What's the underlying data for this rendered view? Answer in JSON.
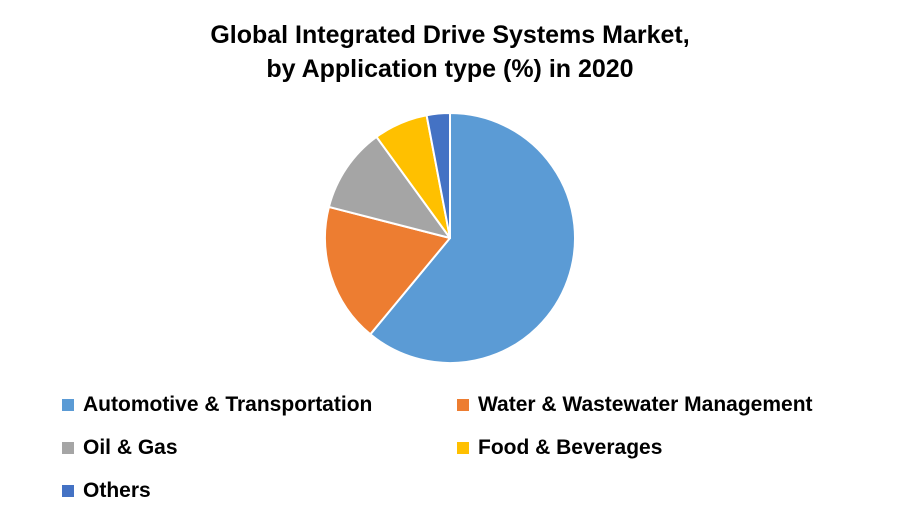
{
  "chart_data": {
    "type": "pie",
    "title": "Global Integrated Drive Systems Market,",
    "subtitle": "by Application type (%) in 2020",
    "legend_position": "bottom",
    "start_angle_deg": 0,
    "direction": "clockwise",
    "slices": [
      {
        "label": "Automotive & Transportation",
        "value": 61,
        "color": "#5B9BD5"
      },
      {
        "label": "Water & Wastewater Management",
        "value": 18,
        "color": "#ED7D31"
      },
      {
        "label": "Oil & Gas",
        "value": 11,
        "color": "#A5A5A5"
      },
      {
        "label": "Food & Beverages",
        "value": 7,
        "color": "#FFC000"
      },
      {
        "label": "Others",
        "value": 3,
        "color": "#4472C4"
      }
    ]
  }
}
